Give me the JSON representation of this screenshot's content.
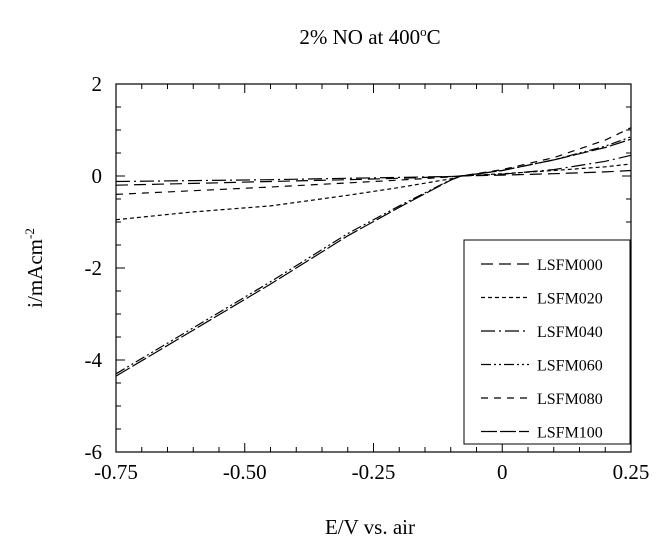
{
  "chart_data": {
    "type": "line",
    "title_main": "2% NO at 400",
    "title_sup": "o",
    "title_end": "C",
    "xlabel": "E/V vs. air",
    "ylabel_main": "i/mAcm",
    "ylabel_sup": "-2",
    "xlim": [
      -0.75,
      0.25
    ],
    "ylim": [
      -6,
      2
    ],
    "xticks": [
      -0.75,
      -0.5,
      -0.25,
      0,
      0.25
    ],
    "xtick_labels": [
      "-0.75",
      "-0.50",
      "-0.25",
      "0",
      "0.25"
    ],
    "yticks": [
      -6,
      -4,
      -2,
      0,
      2
    ],
    "ytick_labels": [
      "-6",
      "-4",
      "-2",
      "0",
      "2"
    ],
    "grid": false,
    "legend_position": "lower-right",
    "series": [
      {
        "name": "LSFM000",
        "dash": "12,6",
        "x": [
          -0.75,
          -0.6,
          -0.45,
          -0.3,
          -0.2,
          -0.1,
          -0.08,
          0.0,
          0.1,
          0.2,
          0.25
        ],
        "y": [
          -0.2,
          -0.16,
          -0.12,
          -0.08,
          -0.05,
          -0.01,
          0.0,
          0.02,
          0.05,
          0.09,
          0.12
        ]
      },
      {
        "name": "LSFM020",
        "dash": "4,3",
        "x": [
          -0.75,
          -0.6,
          -0.45,
          -0.3,
          -0.2,
          -0.1,
          -0.08,
          0.0,
          0.1,
          0.2,
          0.25
        ],
        "y": [
          -0.95,
          -0.78,
          -0.65,
          -0.42,
          -0.25,
          -0.06,
          0.0,
          0.05,
          0.12,
          0.2,
          0.26
        ]
      },
      {
        "name": "LSFM040",
        "dash": "14,4,2,4",
        "x": [
          -0.75,
          -0.6,
          -0.45,
          -0.3,
          -0.2,
          -0.1,
          -0.08,
          0.0,
          0.1,
          0.2,
          0.25
        ],
        "y": [
          -0.12,
          -0.1,
          -0.08,
          -0.05,
          -0.03,
          -0.01,
          0.0,
          0.04,
          0.14,
          0.32,
          0.45
        ]
      },
      {
        "name": "LSFM060",
        "dash": "10,3,2,3,2,3",
        "x": [
          -0.75,
          -0.6,
          -0.45,
          -0.3,
          -0.2,
          -0.1,
          -0.08,
          0.0,
          0.1,
          0.2,
          0.25
        ],
        "y": [
          -4.3,
          -3.3,
          -2.3,
          -1.25,
          -0.65,
          -0.08,
          0.0,
          0.12,
          0.35,
          0.65,
          0.85
        ]
      },
      {
        "name": "LSFM080",
        "dash": "7,6",
        "x": [
          -0.75,
          -0.6,
          -0.45,
          -0.3,
          -0.2,
          -0.1,
          -0.08,
          0.0,
          0.1,
          0.2,
          0.25
        ],
        "y": [
          -0.4,
          -0.32,
          -0.24,
          -0.15,
          -0.09,
          -0.02,
          0.0,
          0.14,
          0.4,
          0.78,
          1.05
        ]
      },
      {
        "name": "LSFM100",
        "dash": "16,3",
        "x": [
          -0.75,
          -0.6,
          -0.45,
          -0.3,
          -0.2,
          -0.1,
          -0.08,
          0.0,
          0.1,
          0.2,
          0.25
        ],
        "y": [
          -4.35,
          -3.35,
          -2.35,
          -1.3,
          -0.68,
          -0.09,
          0.0,
          0.12,
          0.35,
          0.62,
          0.8
        ]
      }
    ]
  }
}
